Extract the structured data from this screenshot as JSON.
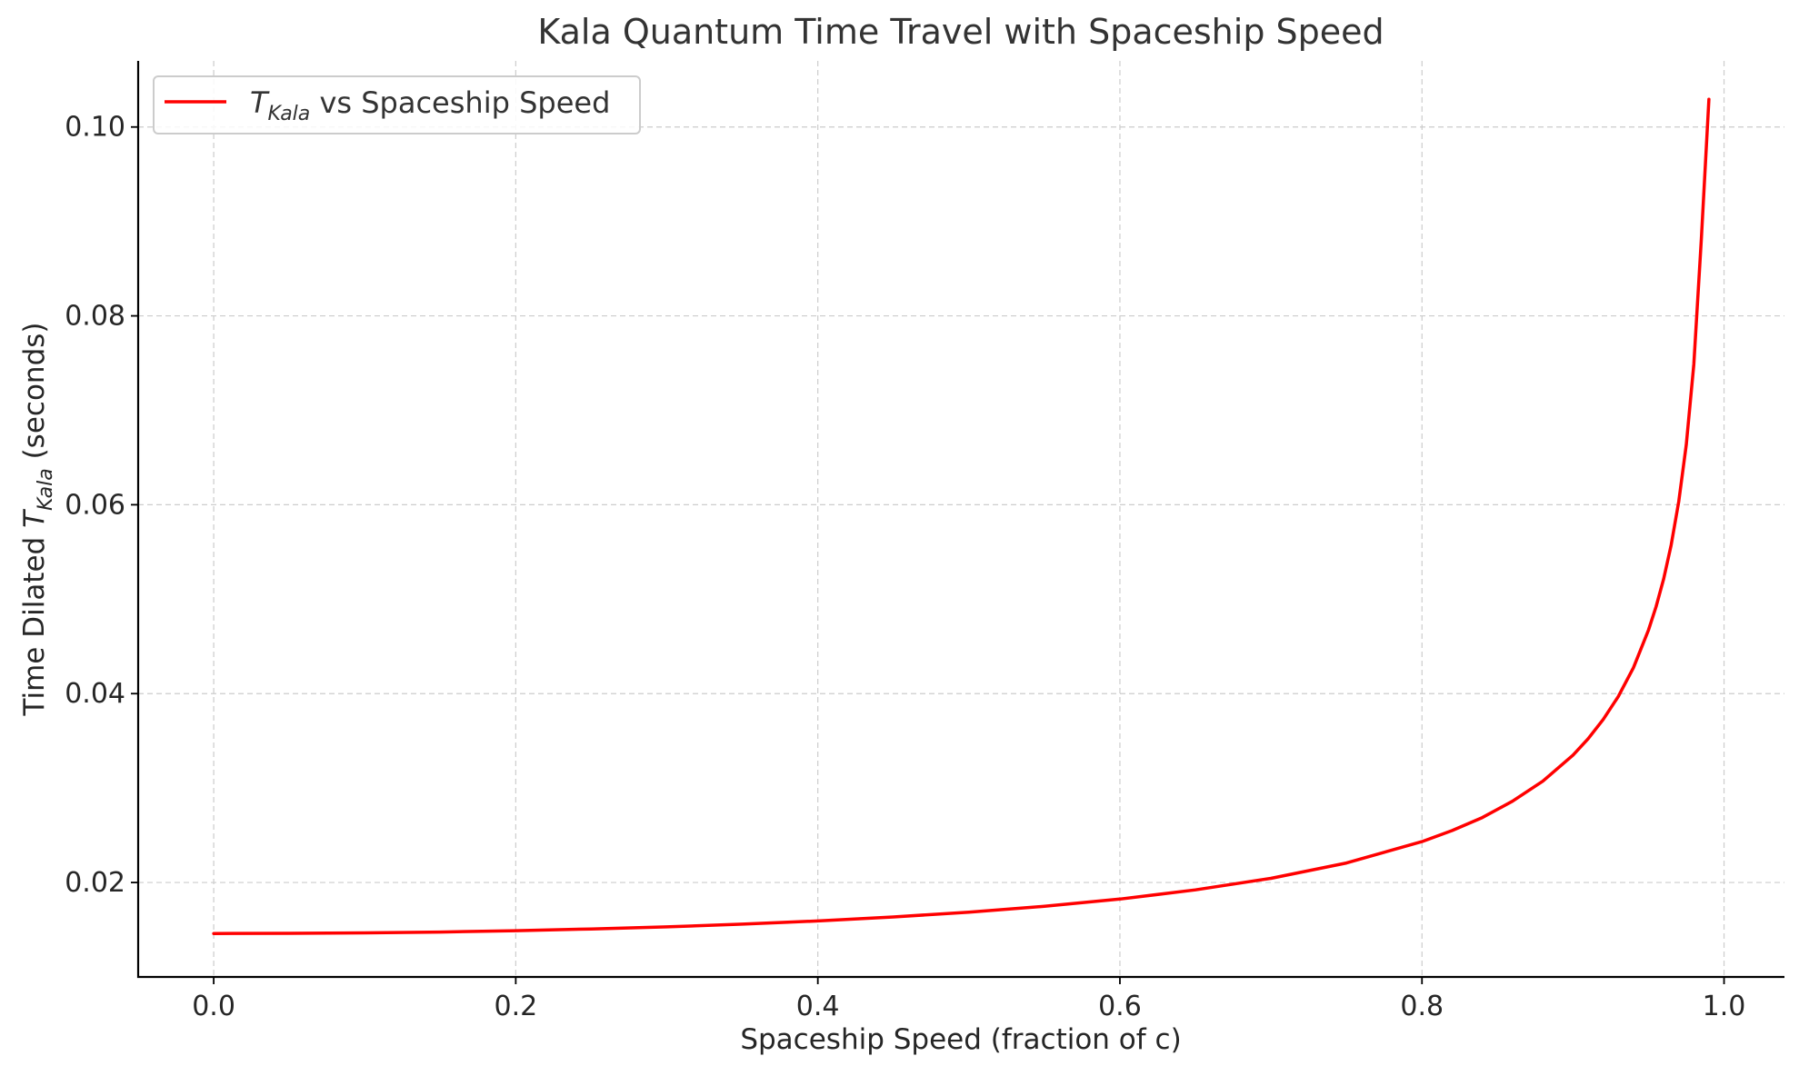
{
  "chart_data": {
    "type": "line",
    "title": "Kala Quantum Time Travel with Spaceship Speed",
    "xlabel": "Spaceship Speed (fraction of c)",
    "ylabel_prefix": "Time Dilated ",
    "ylabel_symbol": "T",
    "ylabel_subscript": "Kala",
    "ylabel_suffix": " (seconds)",
    "xlim": [
      -0.05,
      1.04
    ],
    "ylim": [
      0.01,
      0.107
    ],
    "x_ticks": [
      0.0,
      0.2,
      0.4,
      0.6,
      0.8,
      1.0
    ],
    "x_tick_labels": [
      "0.0",
      "0.2",
      "0.4",
      "0.6",
      "0.8",
      "1.0"
    ],
    "y_ticks": [
      0.02,
      0.04,
      0.06,
      0.08,
      0.1
    ],
    "y_tick_labels": [
      "0.02",
      "0.04",
      "0.06",
      "0.08",
      "0.10"
    ],
    "grid": true,
    "legend_position": "top-left",
    "series": [
      {
        "name_symbol": "T",
        "name_subscript": "Kala",
        "name_suffix": " vs Spaceship Speed",
        "color": "#ff0000",
        "x": [
          0.0,
          0.05,
          0.1,
          0.15,
          0.2,
          0.25,
          0.3,
          0.35,
          0.4,
          0.45,
          0.5,
          0.55,
          0.6,
          0.65,
          0.7,
          0.75,
          0.8,
          0.82,
          0.84,
          0.86,
          0.88,
          0.9,
          0.91,
          0.92,
          0.93,
          0.94,
          0.95,
          0.955,
          0.96,
          0.965,
          0.97,
          0.975,
          0.98,
          0.985,
          0.99
        ],
        "y": [
          0.0146,
          0.01462,
          0.01467,
          0.01475,
          0.0149,
          0.01508,
          0.0153,
          0.01559,
          0.01593,
          0.01635,
          0.01686,
          0.01748,
          0.01825,
          0.01922,
          0.02044,
          0.02207,
          0.02433,
          0.0255,
          0.02688,
          0.02861,
          0.03073,
          0.03349,
          0.03522,
          0.03726,
          0.0397,
          0.04275,
          0.04675,
          0.04921,
          0.05214,
          0.05575,
          0.06033,
          0.06635,
          0.07487,
          0.08819,
          0.10293
        ]
      }
    ]
  }
}
